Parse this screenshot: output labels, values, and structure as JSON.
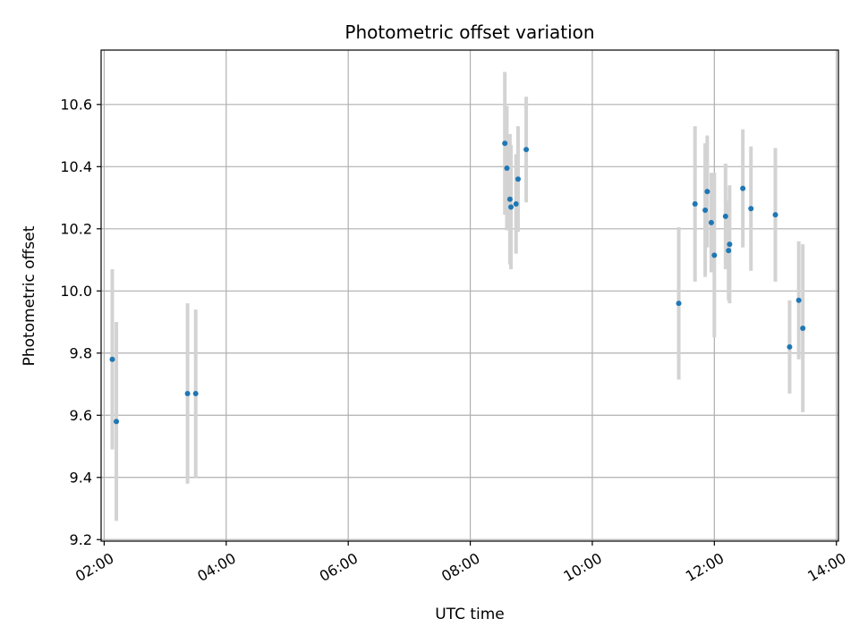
{
  "chart_data": {
    "type": "scatter",
    "title": "Photometric offset variation",
    "xlabel": "UTC time",
    "ylabel": "Photometric offset",
    "x_unit": "time of day (HH:MM, UTC)",
    "xlim": [
      "01:57",
      "14:02"
    ],
    "ylim": [
      9.195,
      10.775
    ],
    "x_ticks": [
      "02:00",
      "04:00",
      "06:00",
      "08:00",
      "10:00",
      "12:00",
      "14:00"
    ],
    "y_ticks": [
      9.2,
      9.4,
      9.6,
      9.8,
      10.0,
      10.2,
      10.4,
      10.6
    ],
    "y_tick_labels": [
      "9.2",
      "9.4",
      "9.6",
      "9.8",
      "10.0",
      "10.2",
      "10.4",
      "10.6"
    ],
    "grid": true,
    "legend": false,
    "series": [
      {
        "points": [
          {
            "x": "02:08",
            "y": 9.78,
            "yerr": 0.29
          },
          {
            "x": "02:12",
            "y": 9.58,
            "yerr": 0.32
          },
          {
            "x": "03:22",
            "y": 9.67,
            "yerr": 0.29
          },
          {
            "x": "03:30",
            "y": 9.67,
            "yerr": 0.27
          },
          {
            "x": "08:34",
            "y": 10.475,
            "yerr": 0.23
          },
          {
            "x": "08:36",
            "y": 10.395,
            "yerr": 0.2
          },
          {
            "x": "08:39",
            "y": 10.295,
            "yerr": 0.21
          },
          {
            "x": "08:40",
            "y": 10.27,
            "yerr": 0.2
          },
          {
            "x": "08:45",
            "y": 10.28,
            "yerr": 0.16
          },
          {
            "x": "08:47",
            "y": 10.36,
            "yerr": 0.17
          },
          {
            "x": "08:55",
            "y": 10.455,
            "yerr": 0.17
          },
          {
            "x": "11:25",
            "y": 9.96,
            "yerr": 0.245
          },
          {
            "x": "11:41",
            "y": 10.28,
            "yerr": 0.25
          },
          {
            "x": "11:51",
            "y": 10.26,
            "yerr": 0.215
          },
          {
            "x": "11:53",
            "y": 10.32,
            "yerr": 0.18
          },
          {
            "x": "11:57",
            "y": 10.22,
            "yerr": 0.16
          },
          {
            "x": "12:00",
            "y": 10.115,
            "yerr": 0.265
          },
          {
            "x": "12:11",
            "y": 10.24,
            "yerr": 0.17
          },
          {
            "x": "12:14",
            "y": 10.13,
            "yerr": 0.16
          },
          {
            "x": "12:15",
            "y": 10.15,
            "yerr": 0.19
          },
          {
            "x": "12:28",
            "y": 10.33,
            "yerr": 0.19
          },
          {
            "x": "12:36",
            "y": 10.265,
            "yerr": 0.2
          },
          {
            "x": "13:00",
            "y": 10.245,
            "yerr": 0.215
          },
          {
            "x": "13:14",
            "y": 9.82,
            "yerr": 0.15
          },
          {
            "x": "13:23",
            "y": 9.97,
            "yerr": 0.19
          },
          {
            "x": "13:27",
            "y": 9.88,
            "yerr": 0.27
          }
        ]
      }
    ],
    "colors": {
      "point": "#1f77b4",
      "errorbar": "#d3d3d3",
      "grid": "#b0b0b0",
      "axes": "#000000"
    }
  }
}
